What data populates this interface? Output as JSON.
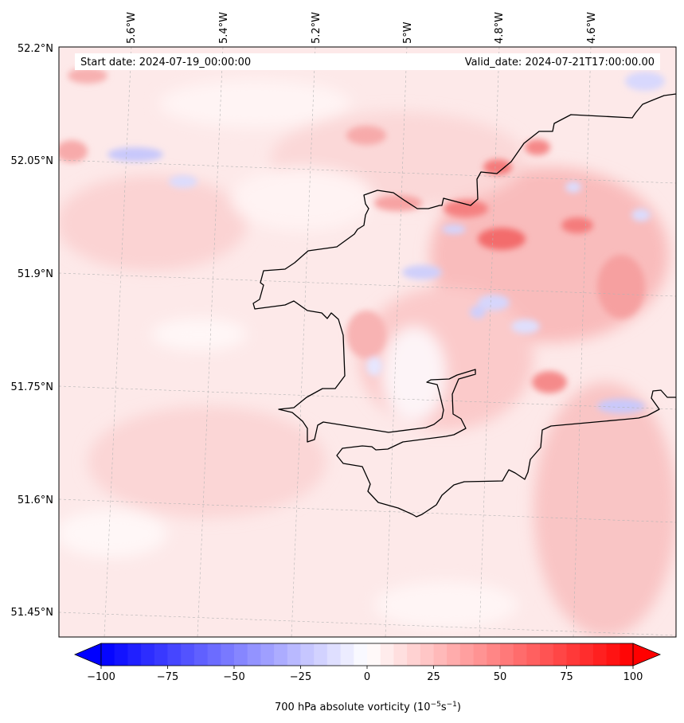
{
  "map": {
    "start_date": "Start date: 2024-07-19_00:00:00",
    "valid_date": "Valid_date: 2024-07-21T17:00:00.00",
    "lon_ticks": [
      "5.6°W",
      "5.4°W",
      "5.2°W",
      "5°W",
      "4.8°W",
      "4.6°W"
    ],
    "lat_ticks": [
      "52.2°N",
      "52.05°N",
      "51.9°N",
      "51.75°N",
      "51.6°N",
      "51.45°N"
    ],
    "extent": {
      "lon_min": -5.75,
      "lon_max": -4.42,
      "lat_min": 51.42,
      "lat_max": 52.2
    },
    "gridlines": true,
    "coastline_color": "#000000"
  },
  "colorbar": {
    "label_main": "700 hPa absolute vorticity (10",
    "label_exp1": "−5",
    "label_mid": "s",
    "label_exp2": "−1",
    "label_end": ")",
    "ticks": [
      "−100",
      "−75",
      "−50",
      "−25",
      "0",
      "25",
      "50",
      "75",
      "100"
    ],
    "min": -100,
    "max": 100,
    "step": 5,
    "extend": "both",
    "cmap": "bwr",
    "negative_color": "#0000ff",
    "positive_color": "#ff0000",
    "neutral_color": "#ffffff"
  }
}
